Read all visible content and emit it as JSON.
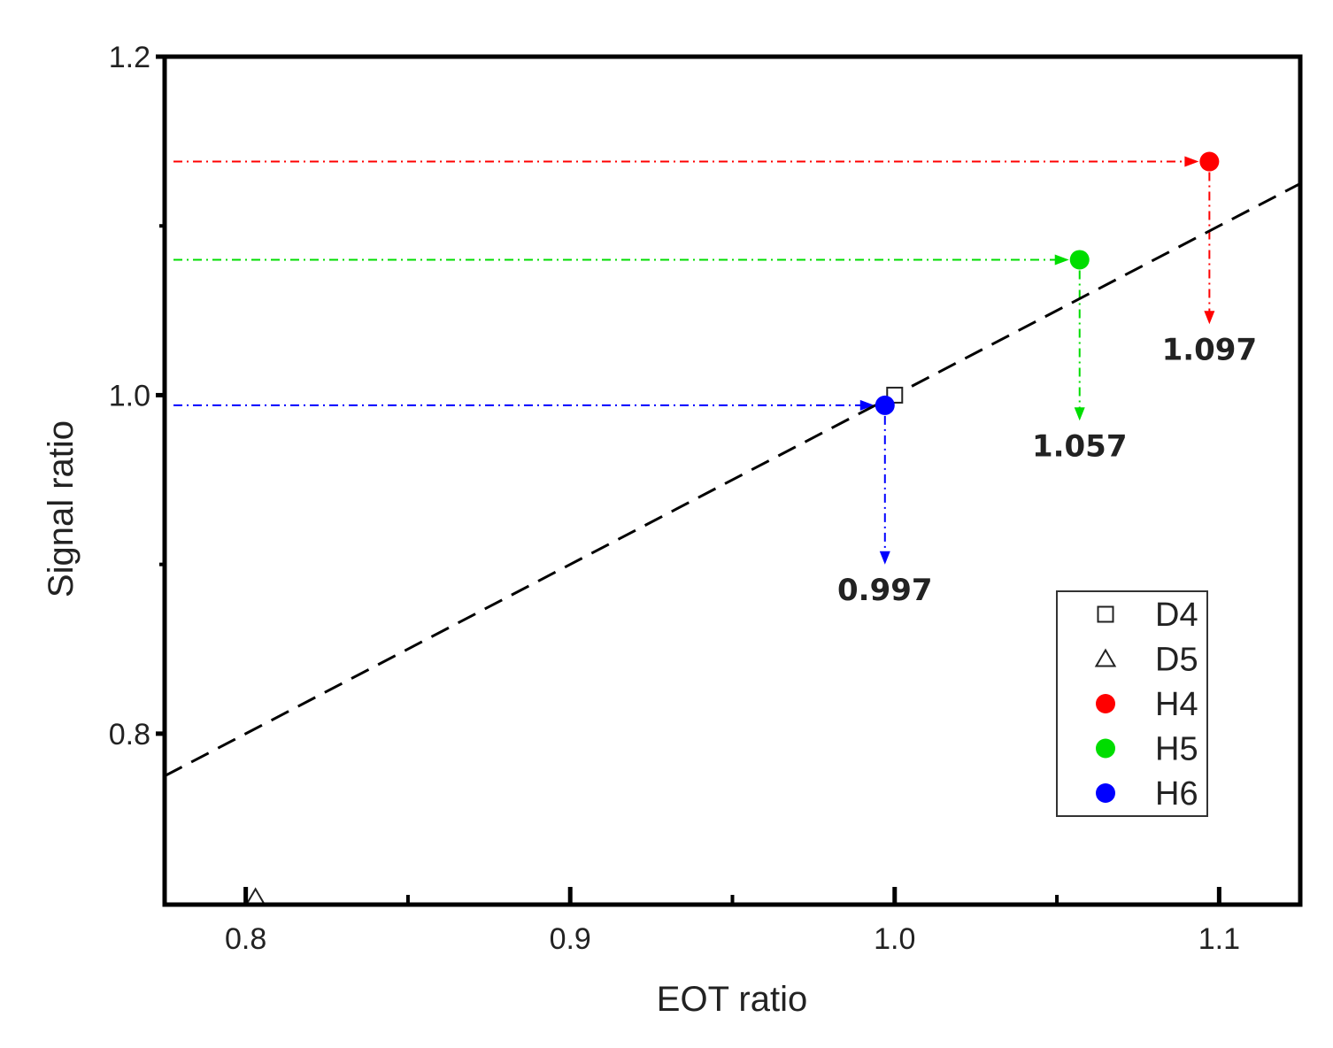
{
  "chart_data": {
    "type": "scatter",
    "xlabel": "EOT ratio",
    "ylabel": "Signal ratio",
    "xlim": [
      0.775,
      1.125
    ],
    "ylim": [
      0.699,
      1.2
    ],
    "x_ticks": [
      {
        "value": 0.8,
        "label": "0.8"
      },
      {
        "value": 0.9,
        "label": "0.9"
      },
      {
        "value": 1.0,
        "label": "1.0"
      },
      {
        "value": 1.1,
        "label": "1.1"
      }
    ],
    "x_minor_ticks": [
      0.85,
      0.95,
      1.05
    ],
    "y_ticks": [
      {
        "value": 0.8,
        "label": "0.8"
      },
      {
        "value": 1.0,
        "label": "1.0"
      },
      {
        "value": 1.2,
        "label": "1.2"
      }
    ],
    "y_minor_ticks": [
      0.9,
      1.1
    ],
    "grid": false,
    "legend_position": "bottom-right",
    "fit_line": {
      "slope": 1.0,
      "intercept": 0.0,
      "style": "dashed",
      "color": "#000000"
    },
    "series": [
      {
        "name": "D4",
        "marker": "open-square",
        "color": "#222222",
        "points": [
          {
            "x": 1.0,
            "y": 1.0
          }
        ]
      },
      {
        "name": "D5",
        "marker": "open-triangle",
        "color": "#222222",
        "points": [
          {
            "x": 0.803,
            "y": 0.703
          }
        ]
      },
      {
        "name": "H4",
        "marker": "filled-circle",
        "color": "#ff0000",
        "points": [
          {
            "x": 1.097,
            "y": 1.138
          }
        ]
      },
      {
        "name": "H5",
        "marker": "filled-circle",
        "color": "#00dd00",
        "points": [
          {
            "x": 1.057,
            "y": 1.08
          }
        ]
      },
      {
        "name": "H6",
        "marker": "filled-circle",
        "color": "#0000ff",
        "points": [
          {
            "x": 0.997,
            "y": 0.994
          }
        ]
      }
    ],
    "annotations": [
      {
        "series": "H4",
        "label": "1.097",
        "color": "#ff0000",
        "x": 1.097,
        "y": 1.138,
        "drop_to_y": 1.043,
        "label_y": 1.021
      },
      {
        "series": "H5",
        "label": "1.057",
        "color": "#00dd00",
        "x": 1.057,
        "y": 1.08,
        "drop_to_y": 0.986,
        "label_y": 0.964
      },
      {
        "series": "H6",
        "label": "0.997",
        "color": "#0000ff",
        "x": 0.997,
        "y": 0.994,
        "drop_to_y": 0.901,
        "label_y": 0.879
      }
    ]
  }
}
